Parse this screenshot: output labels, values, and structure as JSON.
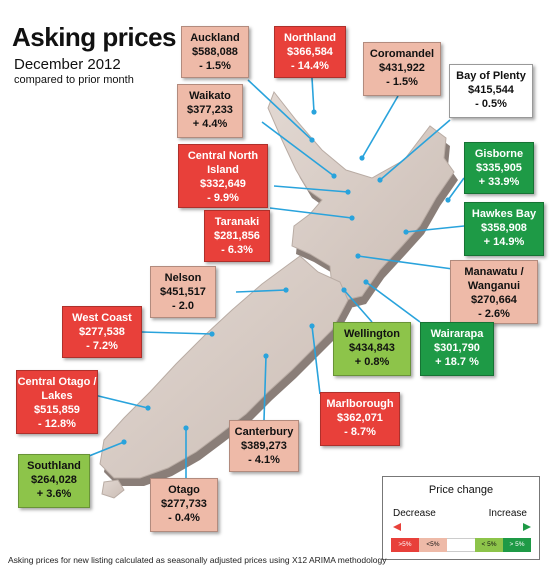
{
  "header": {
    "title": "Asking prices",
    "subtitle": "December 2012",
    "note": "compared to prior month"
  },
  "footnote": "Asking prices for new listing calculated as seasonally adjusted prices using X12 ARIMA methodology",
  "colors": {
    "strong_decrease": "#e8403a",
    "decrease": "#eebaa8",
    "neutral": "#ffffff",
    "increase": "#8dc44a",
    "strong_increase": "#1e9a46"
  },
  "regions": [
    {
      "name": "Auckland",
      "price": "$588,088",
      "change": "- 1.5%"
    },
    {
      "name": "Northland",
      "price": "$366,584",
      "change": "- 14.4%"
    },
    {
      "name": "Coromandel",
      "price": "$431,922",
      "change": "- 1.5%"
    },
    {
      "name": "Bay of Plenty",
      "price": "$415,544",
      "change": "- 0.5%"
    },
    {
      "name": "Waikato",
      "price": "$377,233",
      "change": "+ 4.4%"
    },
    {
      "name": "Central North Island",
      "price": "$332,649",
      "change": "- 9.9%"
    },
    {
      "name": "Gisborne",
      "price": "$335,905",
      "change": "+ 33.9%"
    },
    {
      "name": "Hawkes Bay",
      "price": "$358,908",
      "change": "+ 14.9%"
    },
    {
      "name": "Taranaki",
      "price": "$281,856",
      "change": "- 6.3%"
    },
    {
      "name": "Manawatu / Wanganui",
      "price": "$270,664",
      "change": "- 2.6%"
    },
    {
      "name": "Nelson",
      "price": "$451,517",
      "change": "- 2.0"
    },
    {
      "name": "West Coast",
      "price": "$277,538",
      "change": "- 7.2%"
    },
    {
      "name": "Wellington",
      "price": "$434,843",
      "change": "+ 0.8%"
    },
    {
      "name": "Wairarapa",
      "price": "$301,790",
      "change": "+ 18.7 %"
    },
    {
      "name": "Central Otago / Lakes",
      "price": "$515,859",
      "change": "- 12.8%"
    },
    {
      "name": "Marlborough",
      "price": "$362,071",
      "change": "- 8.7%"
    },
    {
      "name": "Canterbury",
      "price": "$389,273",
      "change": "- 4.1%"
    },
    {
      "name": "Southland",
      "price": "$264,028",
      "change": "+ 3.6%"
    },
    {
      "name": "Otago",
      "price": "$277,733",
      "change": "- 0.4%"
    }
  ],
  "legend": {
    "title": "Price change",
    "decrease_label": "Decrease",
    "increase_label": "Increase",
    "swatches": [
      ">5%",
      "<5%",
      "",
      "< 5%",
      "> 5%"
    ]
  }
}
